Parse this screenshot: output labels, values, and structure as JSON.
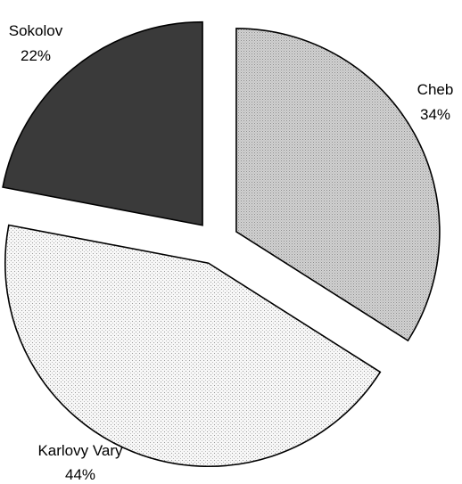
{
  "chart_data": {
    "type": "pie",
    "exploded": true,
    "start_angle_deg": 0,
    "direction": "clockwise",
    "slices": [
      {
        "name": "Cheb",
        "value": 34,
        "percent_label": "34%",
        "color": "#c8c8c8",
        "pattern": "fine-dots-dense"
      },
      {
        "name": "Karlovy Vary",
        "value": 44,
        "percent_label": "44%",
        "color": "#efefef",
        "pattern": "fine-dots-sparse"
      },
      {
        "name": "Sokolov",
        "value": 22,
        "percent_label": "22%",
        "color": "#3a3a3a",
        "pattern": "solid"
      }
    ],
    "outline_color": "#000000"
  }
}
